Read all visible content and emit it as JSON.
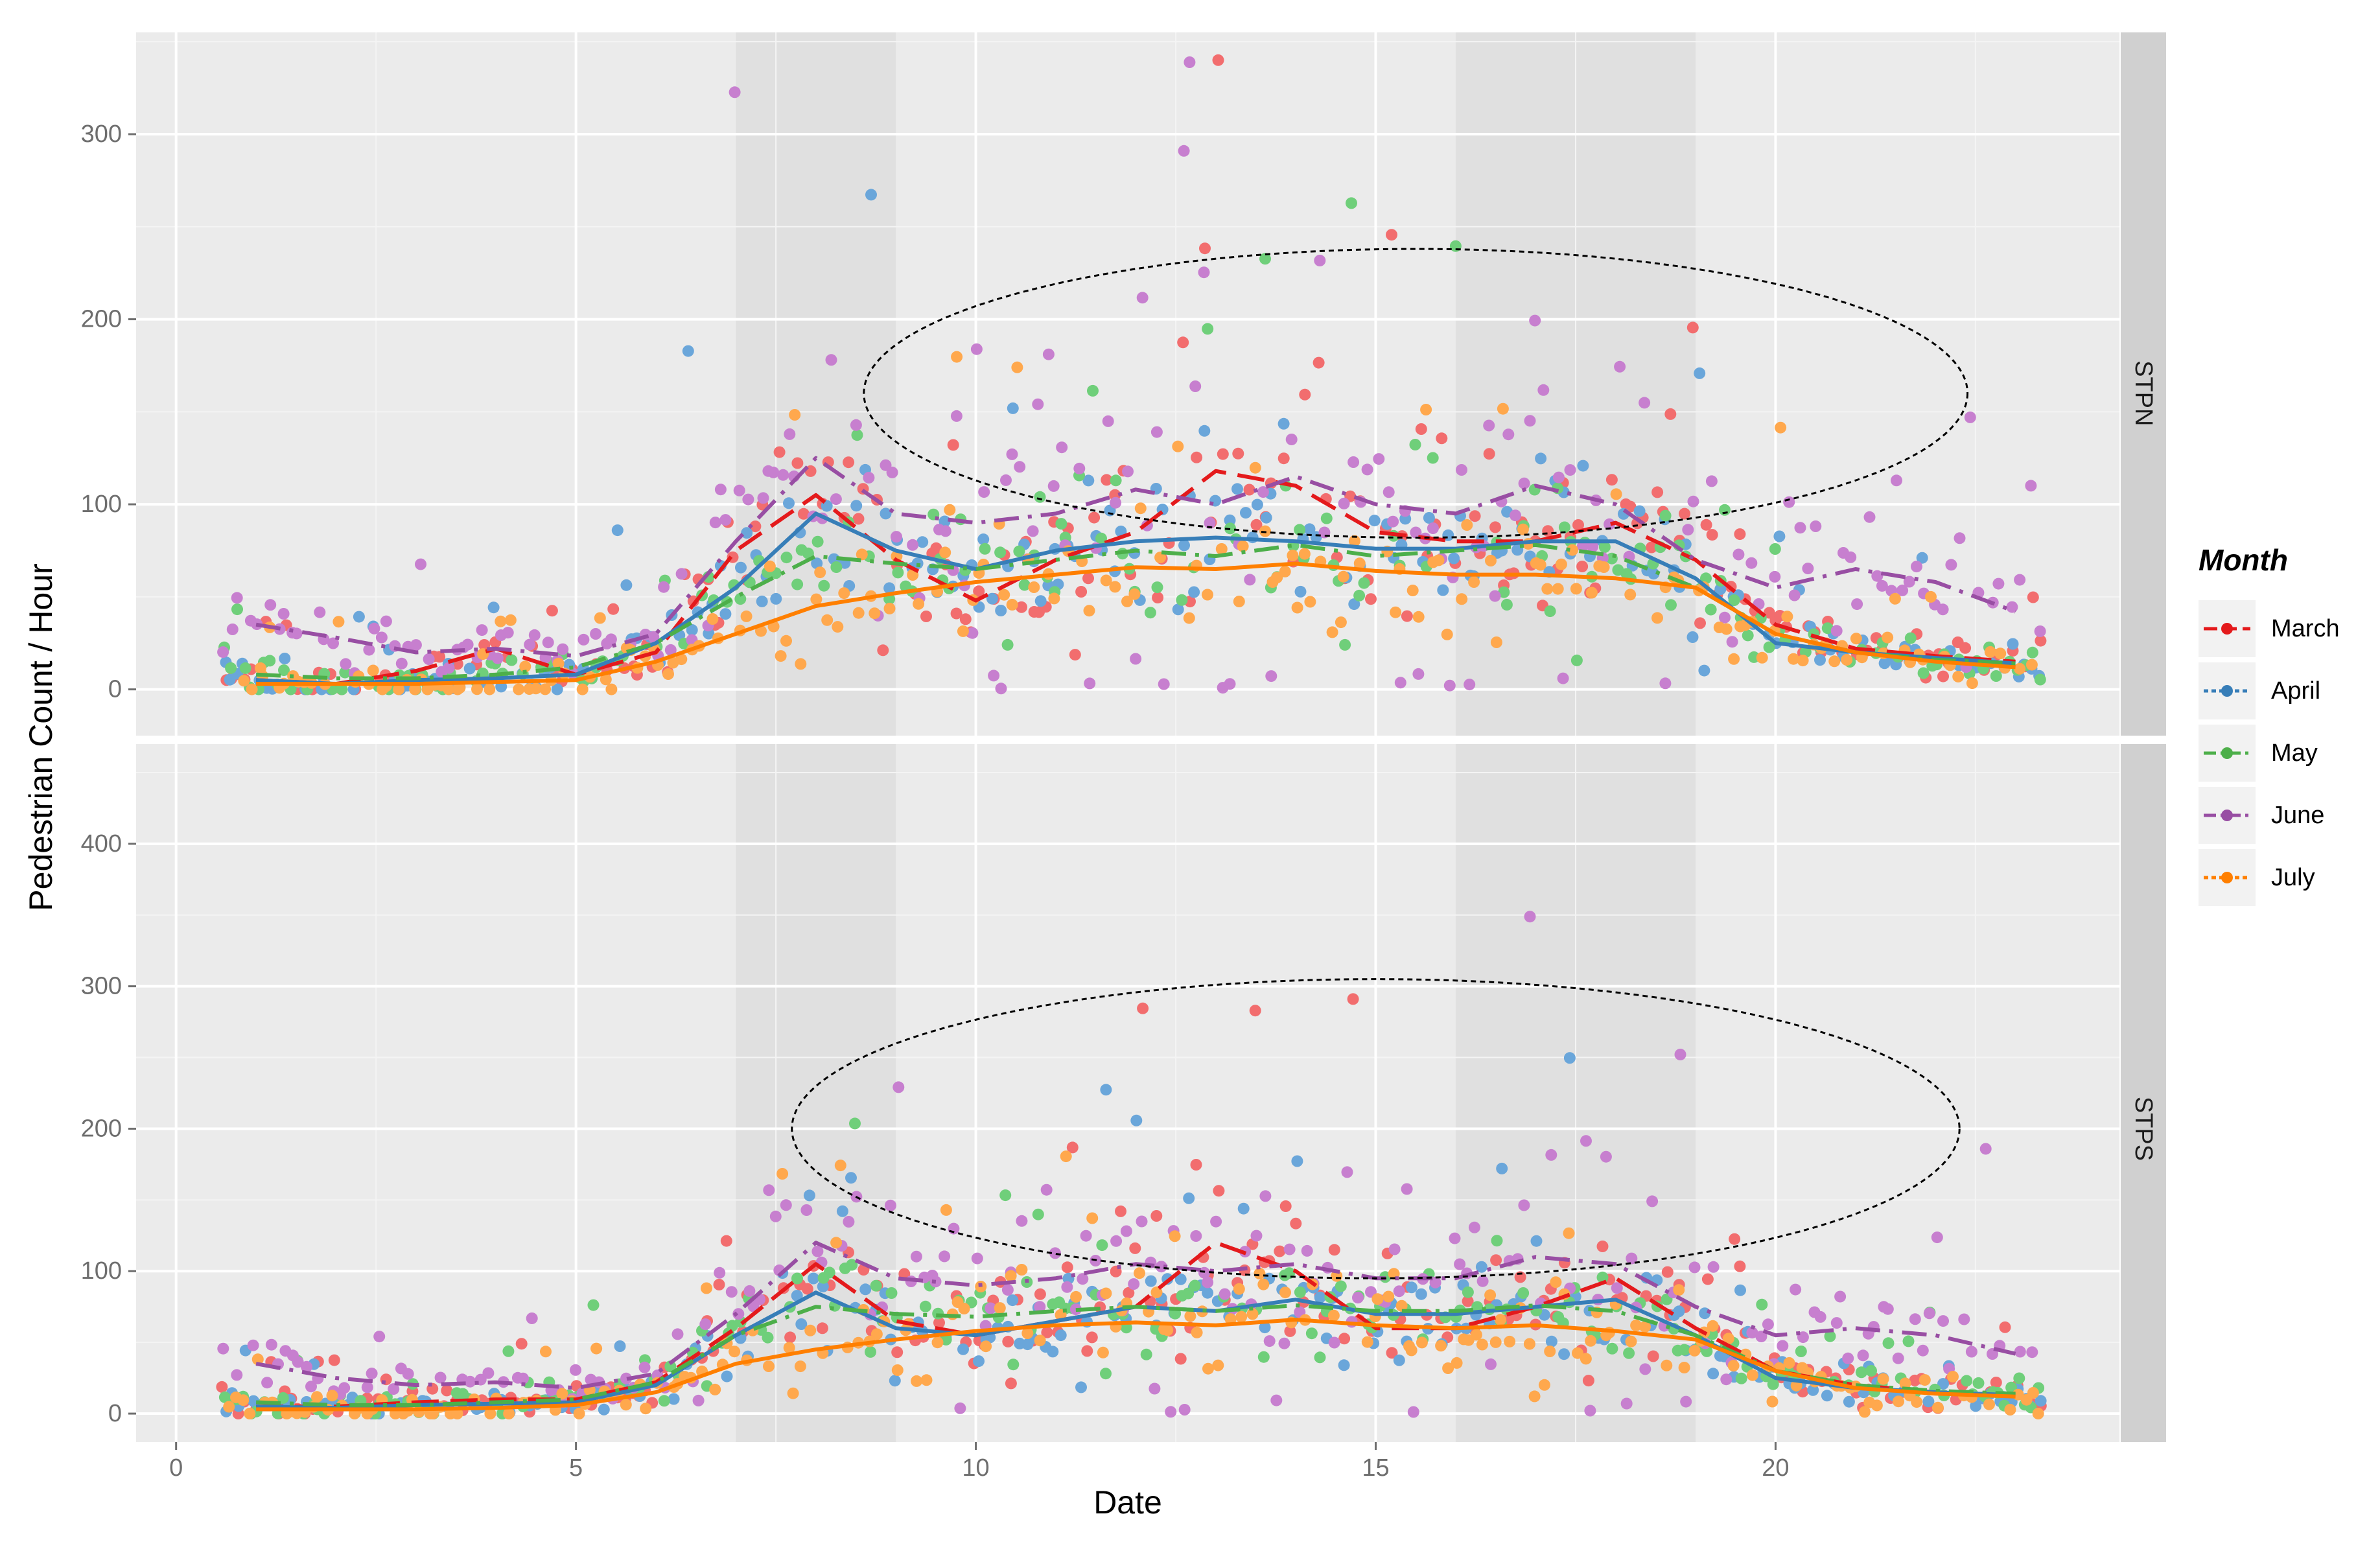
{
  "chart_data": {
    "type": "scatter",
    "xlabel": "Date",
    "ylabel": "Pedestrian Count / Hour",
    "xlim": [
      -0.5,
      24.3
    ],
    "x_ticks": [
      0,
      5,
      10,
      15,
      20
    ],
    "legend": {
      "title": "Month",
      "position": "right"
    },
    "series_names": [
      "March",
      "April",
      "May",
      "June",
      "July"
    ],
    "colors": {
      "March": "#E41A1C",
      "April": "#377EB8",
      "May": "#4DAF4A",
      "June": "#984EA3",
      "July": "#FF7F00"
    },
    "point_colors": {
      "March": "#F26D6E",
      "April": "#6AA6DA",
      "May": "#6FCF7A",
      "June": "#C77FCF",
      "July": "#FFA84D"
    },
    "line_styles": {
      "March": "longdash",
      "April": "solid",
      "May": "dashdot",
      "June": "dashdot",
      "July": "solid"
    },
    "shaded_bands": [
      [
        7,
        9
      ],
      [
        16,
        19
      ]
    ],
    "panels": [
      {
        "strip": "STPN",
        "ylim": [
          -25,
          355
        ],
        "y_ticks": [
          0,
          100,
          200,
          300
        ],
        "ellipse": {
          "cx": 15.5,
          "cy": 160,
          "rx": 6.9,
          "ry": 78
        },
        "trend": {
          "x": [
            1,
            2,
            3,
            4,
            5,
            6,
            7,
            8,
            9,
            10,
            11,
            12,
            13,
            14,
            15,
            16,
            17,
            18,
            19,
            20,
            21,
            22,
            23
          ],
          "March": [
            5,
            3,
            10,
            22,
            8,
            20,
            75,
            105,
            70,
            48,
            70,
            85,
            118,
            110,
            85,
            80,
            80,
            90,
            70,
            35,
            22,
            18,
            15
          ],
          "April": [
            5,
            3,
            5,
            6,
            8,
            25,
            55,
            95,
            75,
            65,
            75,
            80,
            82,
            80,
            76,
            76,
            80,
            80,
            60,
            25,
            20,
            17,
            14
          ],
          "May": [
            8,
            6,
            6,
            8,
            12,
            25,
            50,
            72,
            68,
            65,
            70,
            75,
            72,
            78,
            72,
            75,
            78,
            72,
            55,
            30,
            20,
            16,
            14
          ],
          "June": [
            35,
            28,
            20,
            22,
            18,
            30,
            80,
            125,
            95,
            90,
            95,
            108,
            100,
            115,
            100,
            95,
            110,
            100,
            70,
            55,
            65,
            58,
            42
          ],
          "July": [
            3,
            3,
            3,
            4,
            5,
            15,
            30,
            45,
            52,
            58,
            62,
            66,
            65,
            68,
            64,
            62,
            62,
            60,
            55,
            30,
            20,
            15,
            12
          ]
        }
      },
      {
        "strip": "STPS",
        "ylim": [
          -20,
          470
        ],
        "y_ticks": [
          0,
          100,
          200,
          300,
          400
        ],
        "ellipse": {
          "cx": 15.0,
          "cy": 200,
          "rx": 7.3,
          "ry": 105
        },
        "trend": {
          "x": [
            1,
            2,
            3,
            4,
            5,
            6,
            7,
            8,
            9,
            10,
            11,
            12,
            13,
            14,
            15,
            16,
            17,
            18,
            19,
            20,
            21,
            22,
            23
          ],
          "March": [
            5,
            5,
            8,
            10,
            10,
            22,
            60,
            105,
            65,
            55,
            65,
            75,
            120,
            100,
            60,
            60,
            75,
            95,
            60,
            30,
            20,
            15,
            12
          ],
          "April": [
            5,
            4,
            6,
            7,
            8,
            20,
            55,
            85,
            60,
            55,
            65,
            75,
            72,
            80,
            70,
            70,
            75,
            80,
            55,
            25,
            18,
            15,
            13
          ],
          "May": [
            8,
            6,
            6,
            8,
            10,
            22,
            55,
            75,
            70,
            68,
            72,
            75,
            72,
            76,
            72,
            72,
            76,
            72,
            55,
            30,
            20,
            16,
            14
          ],
          "June": [
            35,
            25,
            20,
            22,
            18,
            28,
            70,
            120,
            95,
            90,
            95,
            105,
            100,
            105,
            95,
            95,
            110,
            105,
            75,
            55,
            60,
            55,
            42
          ],
          "July": [
            3,
            3,
            3,
            4,
            6,
            15,
            35,
            45,
            52,
            58,
            62,
            64,
            62,
            66,
            62,
            60,
            62,
            58,
            52,
            30,
            18,
            14,
            12
          ]
        }
      }
    ]
  }
}
